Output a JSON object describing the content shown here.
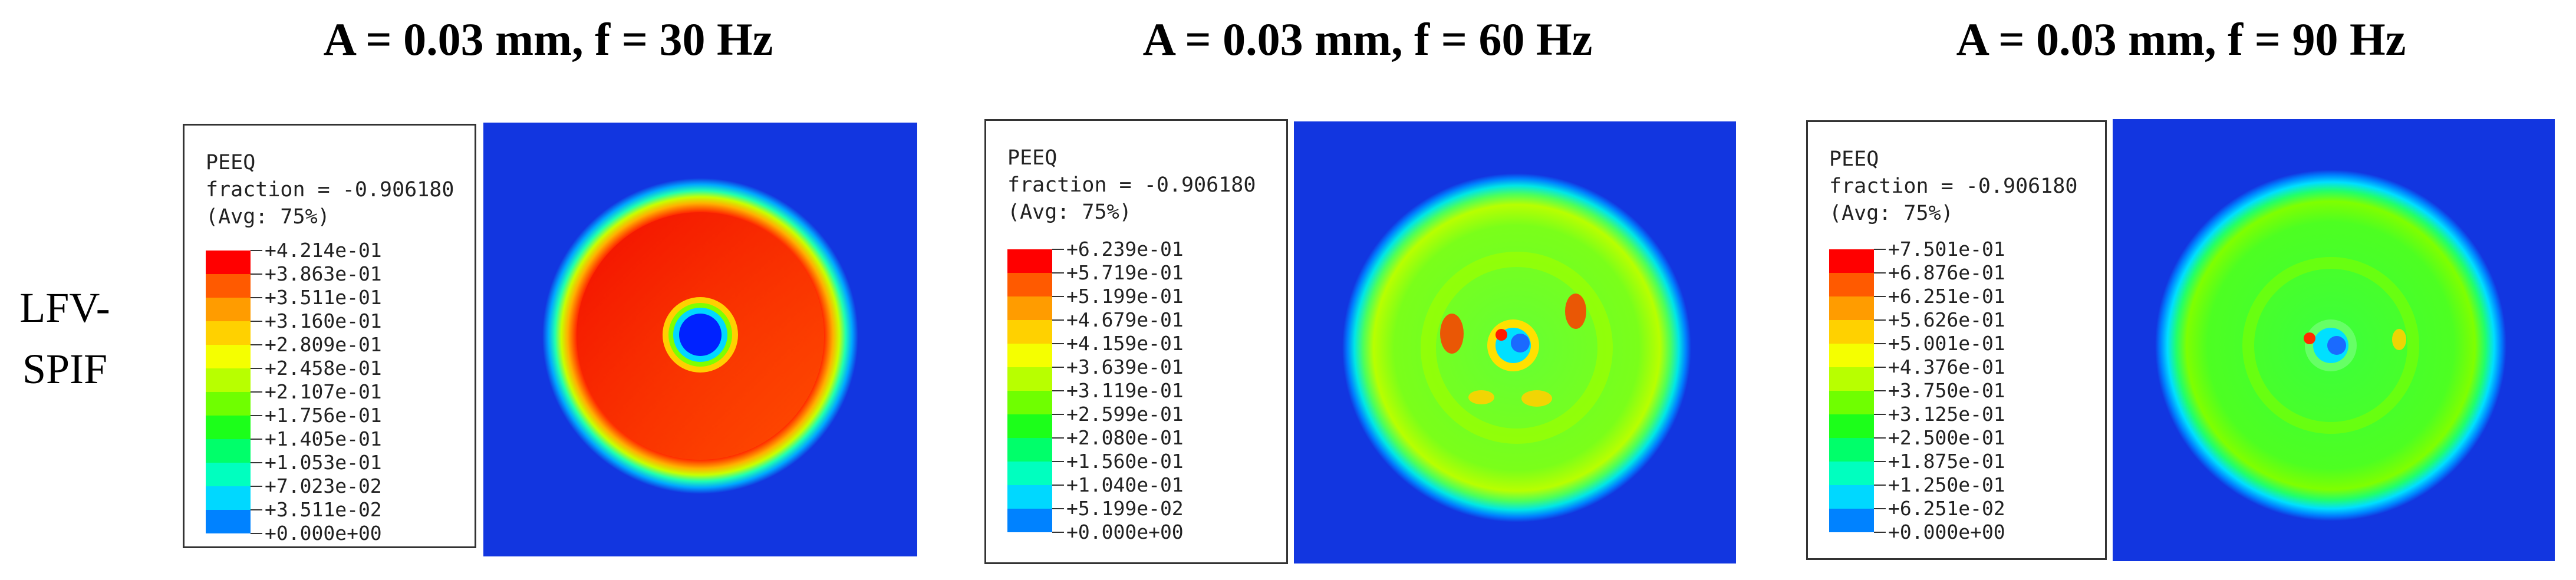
{
  "row_label": [
    "LFV-",
    "SPIF"
  ],
  "panels": [
    {
      "title": "A = 0.03 mm, f = 30 Hz",
      "legend": {
        "variable": "PEEQ",
        "fraction": "fraction = -0.906180",
        "averaging": "(Avg: 75%)",
        "levels": [
          "+4.214e-01",
          "+3.863e-01",
          "+3.511e-01",
          "+3.160e-01",
          "+2.809e-01",
          "+2.458e-01",
          "+2.107e-01",
          "+1.756e-01",
          "+1.405e-01",
          "+1.053e-01",
          "+7.023e-02",
          "+3.511e-02",
          "+0.000e+00"
        ]
      }
    },
    {
      "title": "A = 0.03 mm, f = 60 Hz",
      "legend": {
        "variable": "PEEQ",
        "fraction": "fraction = -0.906180",
        "averaging": "(Avg: 75%)",
        "levels": [
          "+6.239e-01",
          "+5.719e-01",
          "+5.199e-01",
          "+4.679e-01",
          "+4.159e-01",
          "+3.639e-01",
          "+3.119e-01",
          "+2.599e-01",
          "+2.080e-01",
          "+1.560e-01",
          "+1.040e-01",
          "+5.199e-02",
          "+0.000e+00"
        ]
      }
    },
    {
      "title": "A = 0.03 mm, f = 90 Hz",
      "legend": {
        "variable": "PEEQ",
        "fraction": "fraction = -0.906180",
        "averaging": "(Avg: 75%)",
        "levels": [
          "+7.501e-01",
          "+6.876e-01",
          "+6.251e-01",
          "+5.626e-01",
          "+5.001e-01",
          "+4.376e-01",
          "+3.750e-01",
          "+3.125e-01",
          "+2.500e-01",
          "+1.875e-01",
          "+1.250e-01",
          "+6.251e-02",
          "+0.000e+00"
        ]
      }
    }
  ],
  "colors": {
    "scale": [
      "#ff0000",
      "#ff5a00",
      "#ff9c00",
      "#ffd100",
      "#f5ff00",
      "#b8ff00",
      "#6fff00",
      "#1cff1a",
      "#00ff6a",
      "#00ffbf",
      "#00d8ff",
      "#0082ff",
      "#0022ff"
    ],
    "background_plate": "#1236e0"
  }
}
